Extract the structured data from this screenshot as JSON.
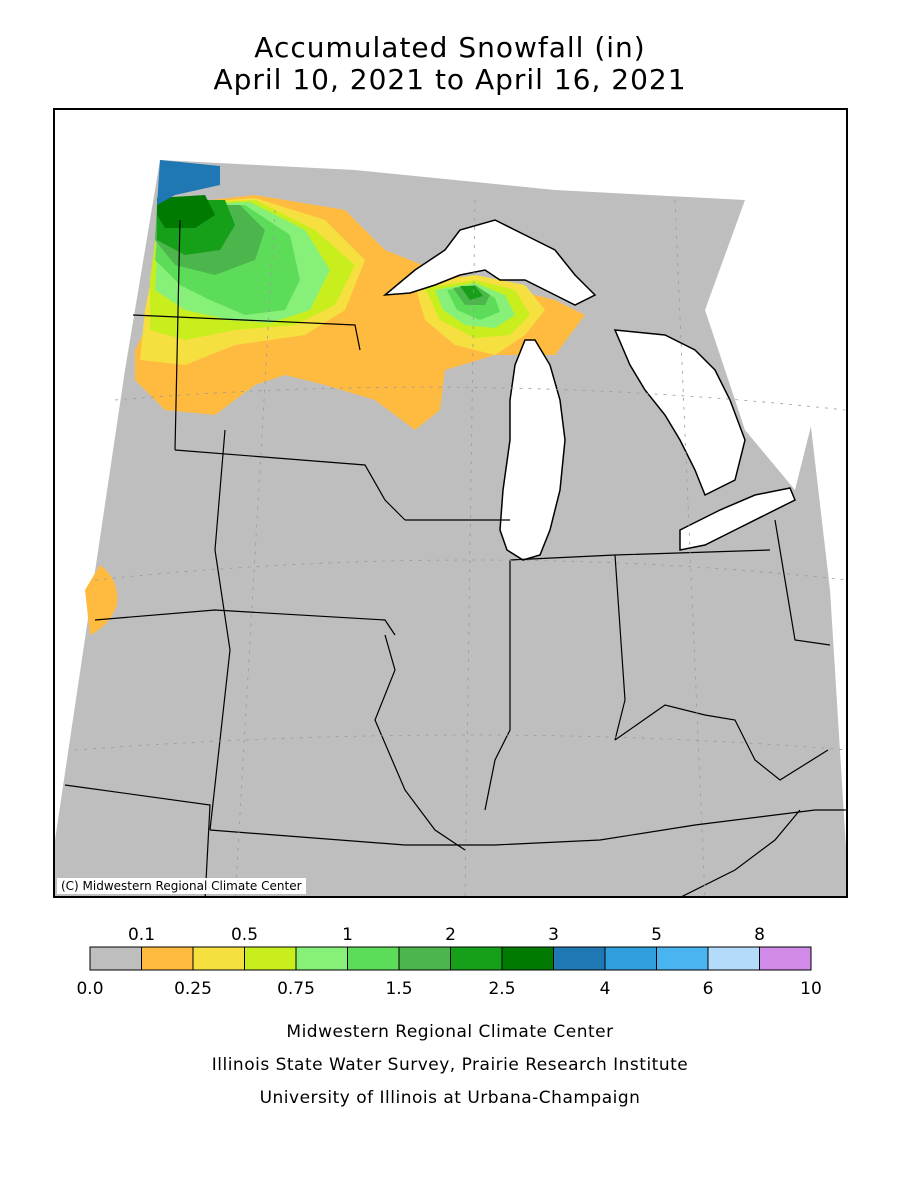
{
  "title": {
    "line1": "Accumulated Snowfall (in)",
    "line2": "April 10, 2021 to April 16, 2021"
  },
  "map": {
    "copyright": "(C) Midwestern Regional Climate Center",
    "colors": {
      "no_data_background": "#ffffff",
      "base_gray": "#bebebe",
      "lake_fill": "#ffffff",
      "border_line": "#000000"
    }
  },
  "legend": {
    "bins": [
      {
        "color": "#bebebe"
      },
      {
        "color": "#ffbb40"
      },
      {
        "color": "#f5e040"
      },
      {
        "color": "#c8ee1e"
      },
      {
        "color": "#87f079"
      },
      {
        "color": "#5ddc5a"
      },
      {
        "color": "#4cb64c"
      },
      {
        "color": "#169f18"
      },
      {
        "color": "#007a00"
      },
      {
        "color": "#1f78b4"
      },
      {
        "color": "#2fa0dc"
      },
      {
        "color": "#4ab4f0"
      },
      {
        "color": "#b4dcfa"
      },
      {
        "color": "#d08ae8"
      }
    ],
    "top_labels": [
      "0.1",
      "0.5",
      "1",
      "2",
      "3",
      "5",
      "8"
    ],
    "bottom_labels": [
      "0.0",
      "0.25",
      "0.75",
      "1.5",
      "2.5",
      "4",
      "6",
      "10"
    ]
  },
  "credits": [
    "Midwestern Regional Climate Center",
    "Illinois State Water Survey, Prairie Research Institute",
    "University of Illinois at Urbana-Champaign"
  ]
}
